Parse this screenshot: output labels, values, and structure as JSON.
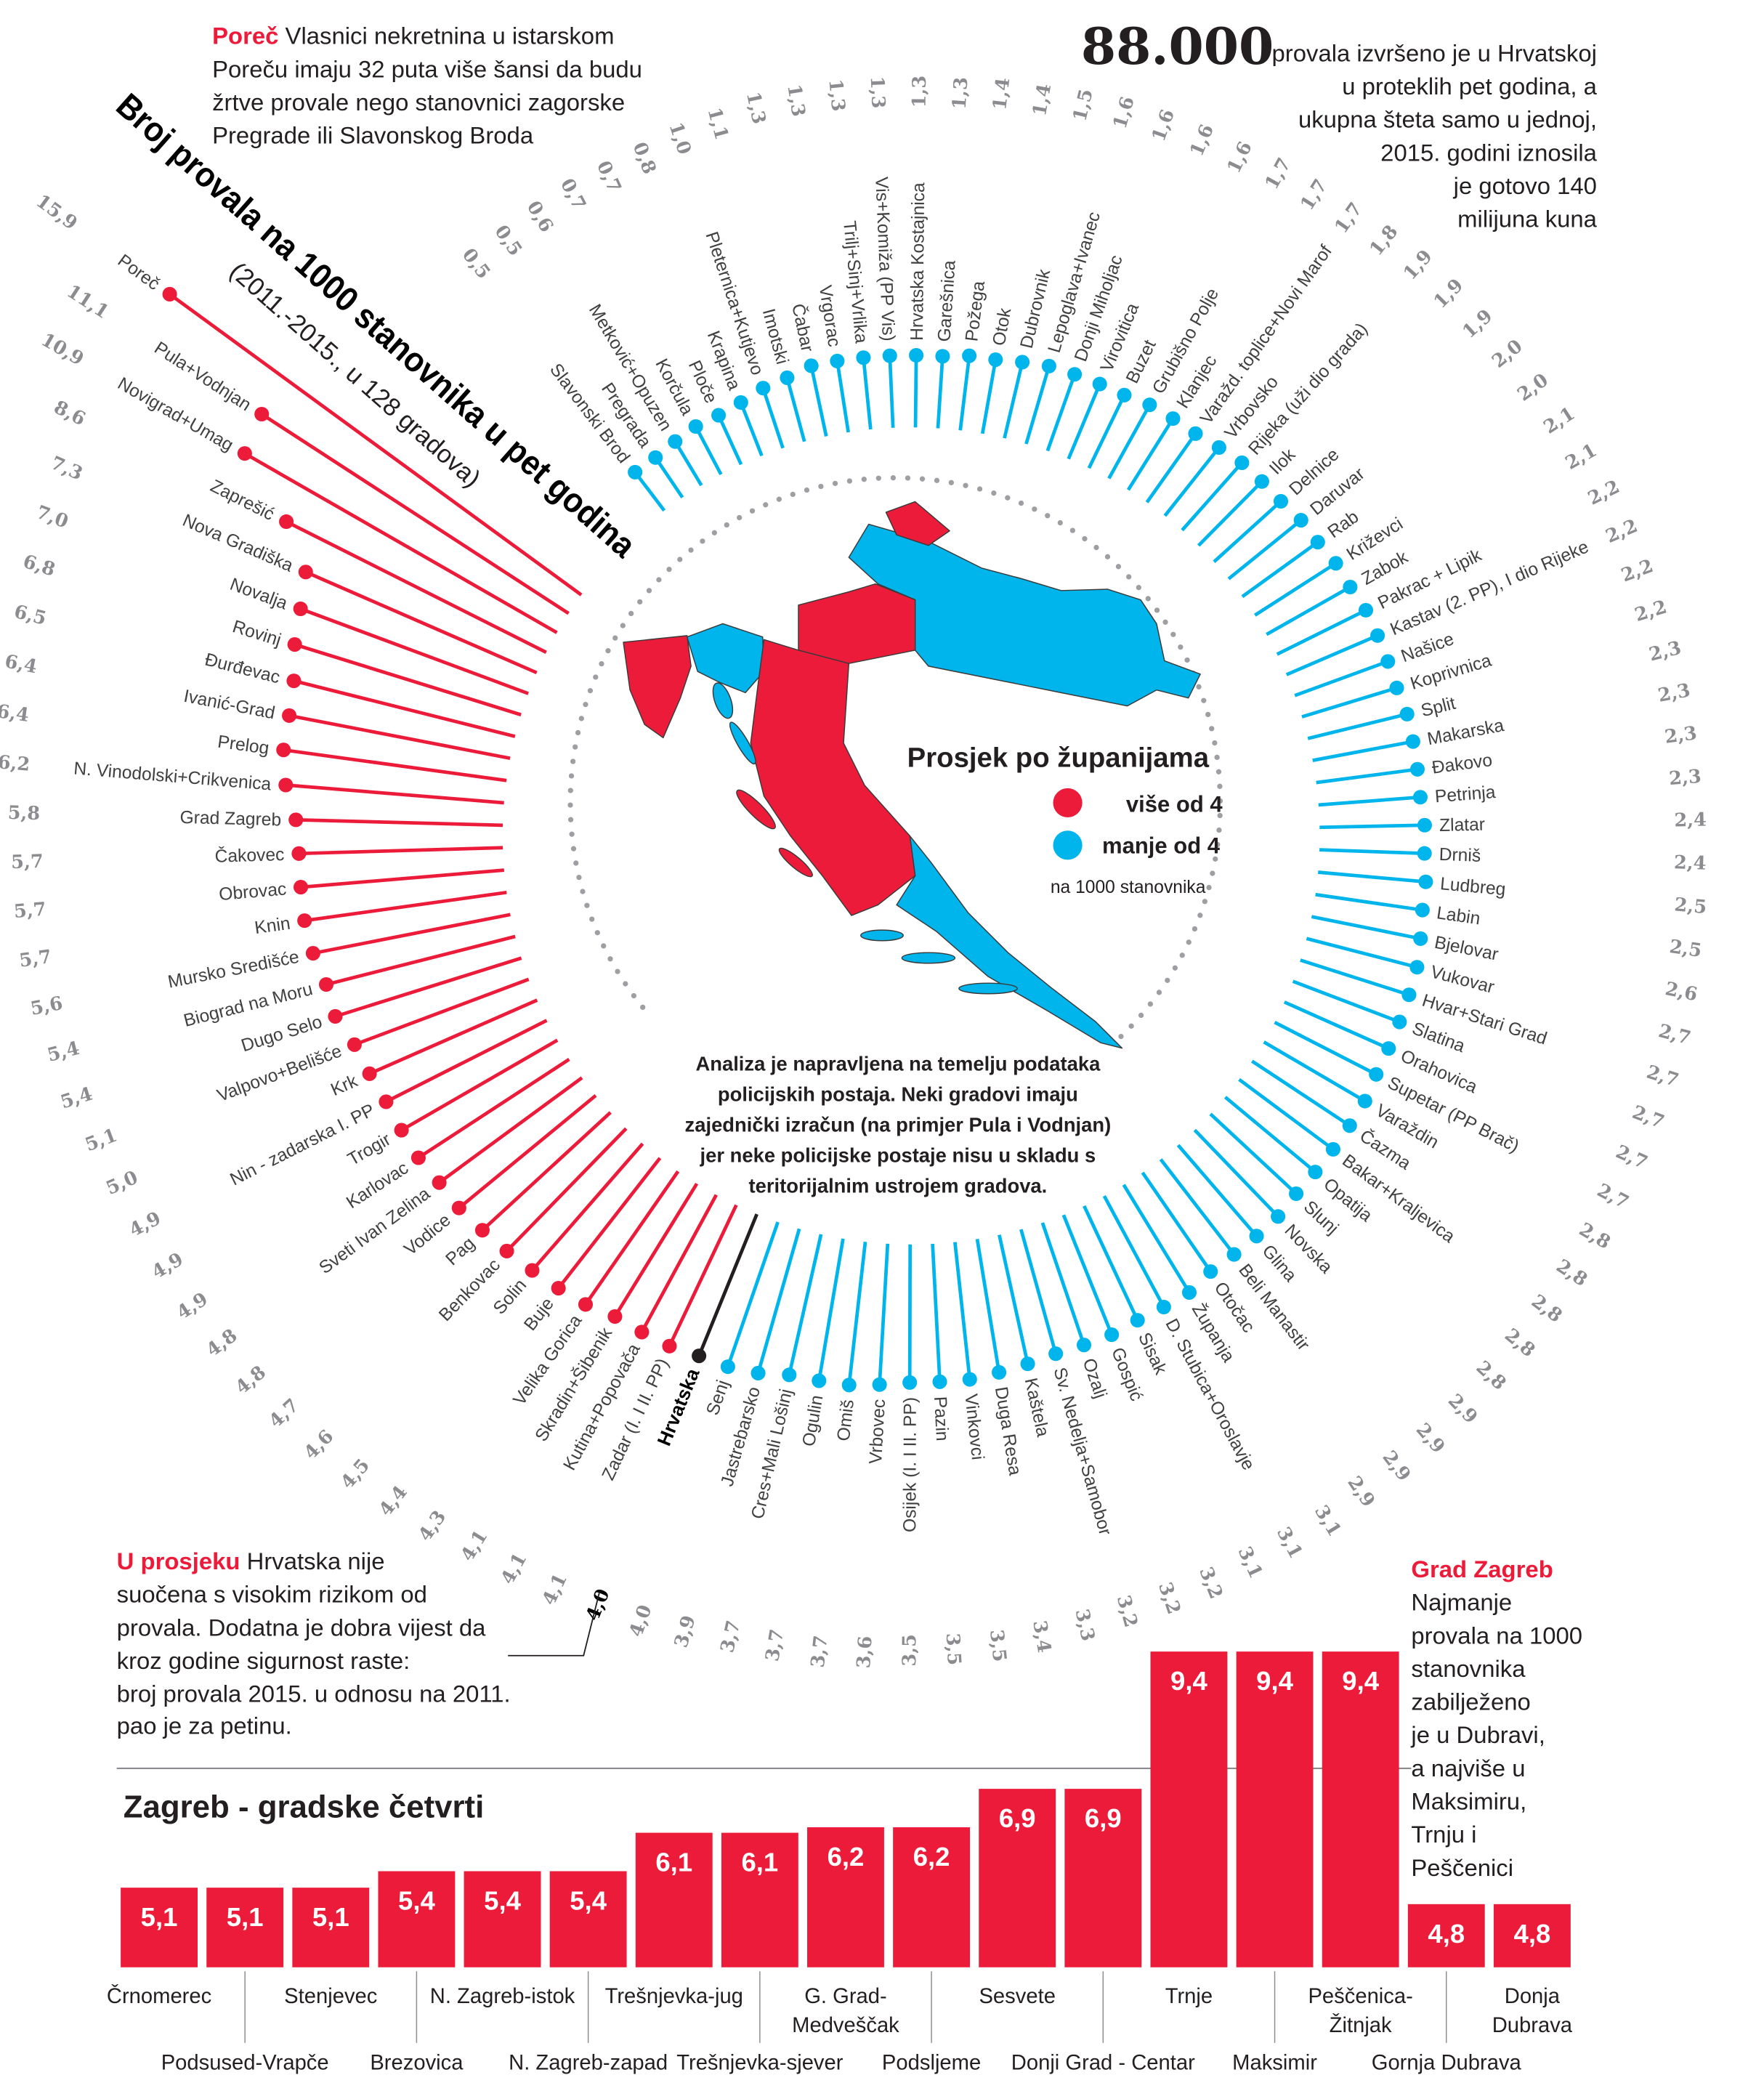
{
  "colors": {
    "above": "#ed1b3a",
    "below": "#00b5ec",
    "average": "#231f20",
    "value_text": "#8c8c90"
  },
  "intro": {
    "highlight": "Poreč",
    "lines": [
      " Vlasnici nekretnina u istarskom",
      "Poreču imaju 32 puta više šansi da budu",
      "žrtve provale nego stanovnici zagorske",
      "Pregrade ili Slavonskog Broda"
    ]
  },
  "headline": {
    "number": "88.000",
    "lines": [
      "provala izvršeno je u Hrvatskoj",
      "u proteklih pet godina, a",
      "ukupna šteta samo u jednoj,",
      "2015. godini iznosila",
      "je gotovo 140",
      "milijuna kuna"
    ]
  },
  "legend": {
    "title": "Prosjek po županijama",
    "above": "više od 4",
    "below": "manje od 4",
    "unit": "na 1000 stanovnika"
  },
  "note": [
    "Analiza je napravljena na temelju podataka",
    "policijskih postaja. Neki gradovi imaju",
    "zajednički izračun (na primjer Pula i Vodnjan)",
    "jer neke policijske postaje nisu u skladu s",
    "teritorijalnim ustrojem gradova."
  ],
  "average_note": {
    "highlight": "U prosjeku",
    "lines": [
      " Hrvatska nije",
      "suočena s visokim rizikom od",
      "provala. Dodatna je dobra vijest da",
      "kroz godine sigurnost raste:",
      "broj provala 2015. u odnosu na 2011.",
      "pao je za petinu."
    ]
  },
  "zagreb_note": {
    "highlight": "Grad Zagreb",
    "lines": [
      "Najmanje",
      "provala na 1000",
      "stanovnika",
      "zabilježeno",
      "je u Dubravi,",
      "a najviše u",
      "Maksimiru,",
      "Trnju i",
      "Peščenici"
    ]
  },
  "chart_data": [
    {
      "type": "bar",
      "layout": "radial-lollipop",
      "title": "Broj provala na 1000 stanovnika u pet godina",
      "subtitle": "(2011.-2015., u 128 gradova)",
      "average_label": "Hrvatska",
      "average_value": 4.0,
      "categories": [
        "Slavonski Brod",
        "Pregrada",
        "Metković+Opuzen",
        "Korčula",
        "Ploče",
        "Krapina",
        "Pleternica+Kutjevo",
        "Imotski",
        "Čabar",
        "Vrgorac",
        "Trilj+Sinj+Vrlika",
        "Vis+Komiža (PP Vis)",
        "Hrvatska Kostajnica",
        "Garešnica",
        "Požega",
        "Otok",
        "Dubrovnik",
        "Lepoglava+Ivanec",
        "Donji Miholjac",
        "Virovitica",
        "Buzet",
        "Grubišno Polje",
        "Klanjec",
        "Varažd. toplice+Novi Marof",
        "Vrbovsko",
        "Rijeka (uži dio grada)",
        "Ilok",
        "Delnice",
        "Daruvar",
        "Rab",
        "Križevci",
        "Zabok",
        "Pakrac + Lipik",
        "Kastav (2. PP), I dio Rijeke",
        "Našice",
        "Koprivnica",
        "Split",
        "Makarska",
        "Đakovo",
        "Petrinja",
        "Zlatar",
        "Drniš",
        "Ludbreg",
        "Labin",
        "Bjelovar",
        "Vukovar",
        "Hvar+Stari Grad",
        "Slatina",
        "Orahovica",
        "Supetar (PP Brač)",
        "Varaždin",
        "Čazma",
        "Bakar+Kraljevica",
        "Opatija",
        "Slunj",
        "Novska",
        "Glina",
        "Beli Manastir",
        "Otočac",
        "Županja",
        "D. Stubica+Oroslavje",
        "Sisak",
        "Gospić",
        "Ozalj",
        "Sv. Nedelja+Samobor",
        "Kaštela",
        "Duga Resa",
        "Vinkovci",
        "Pazin",
        "Osijek (I. I II. PP)",
        "Vrbovec",
        "Omiš",
        "Ogulin",
        "Cres+Mali Lošinj",
        "Jastrebarsko",
        "Senj",
        "Hrvatska",
        "Zadar (I. I II. PP)",
        "Kutina+Popovača",
        "Skradin+Šibenik",
        "Velika Gorica",
        "Buje",
        "Solin",
        "Benkovac",
        "Pag",
        "Vodice",
        "Sveti Ivan Zelina",
        "Karlovac",
        "Trogir",
        "Nin - zadarska I. PP",
        "Krk",
        "Valpovo+Belišće",
        "Dugo Selo",
        "Biograd na Moru",
        "Mursko Središće",
        "Knin",
        "Obrovac",
        "Čakovec",
        "Grad Zagreb",
        "N. Vinodolski+Crikvenica",
        "Prelog",
        "Ivanić-Grad",
        "Đurđevac",
        "Rovinj",
        "Novalja",
        "Nova Gradiška",
        "Zaprešić",
        "Novigrad+Umag",
        "Pula+Vodnjan",
        "Poreč"
      ],
      "values": [
        0.5,
        0.5,
        0.6,
        0.7,
        0.7,
        0.8,
        1.0,
        1.1,
        1.3,
        1.3,
        1.3,
        1.3,
        1.3,
        1.3,
        1.4,
        1.4,
        1.5,
        1.6,
        1.6,
        1.6,
        1.6,
        1.7,
        1.7,
        1.7,
        1.8,
        1.9,
        1.9,
        1.9,
        2.0,
        2.0,
        2.1,
        2.1,
        2.2,
        2.2,
        2.2,
        2.2,
        2.3,
        2.3,
        2.3,
        2.3,
        2.4,
        2.4,
        2.5,
        2.5,
        2.6,
        2.7,
        2.7,
        2.7,
        2.7,
        2.7,
        2.8,
        2.8,
        2.8,
        2.8,
        2.8,
        2.9,
        2.9,
        2.9,
        2.9,
        3.1,
        3.1,
        3.1,
        3.2,
        3.2,
        3.2,
        3.3,
        3.4,
        3.5,
        3.5,
        3.5,
        3.6,
        3.7,
        3.7,
        3.7,
        3.9,
        4.0,
        4.0,
        4.1,
        4.1,
        4.1,
        4.3,
        4.4,
        4.5,
        4.6,
        4.7,
        4.8,
        4.8,
        4.9,
        4.9,
        4.9,
        5.0,
        5.1,
        5.4,
        5.4,
        5.6,
        5.7,
        5.7,
        5.7,
        5.8,
        6.2,
        6.4,
        6.4,
        6.5,
        6.8,
        7.0,
        7.3,
        8.6,
        10.9,
        11.1,
        15.9
      ],
      "unit": "provala na 1000 stanovnika"
    },
    {
      "type": "bar",
      "title": "Zagreb - gradske četvrti",
      "categories": [
        [
          "Črnomerec"
        ],
        [
          "Podsused-Vrapče"
        ],
        [
          "Stenjevec"
        ],
        [
          "Brezovica"
        ],
        [
          "N. Zagreb-istok"
        ],
        [
          "N. Zagreb-zapad"
        ],
        [
          "Trešnjevka-jug"
        ],
        [
          "Trešnjevka-sjever"
        ],
        [
          "G. Grad-",
          "Medveščak"
        ],
        [
          "Podsljeme"
        ],
        [
          "Sesvete"
        ],
        [
          "Donji Grad - Centar"
        ],
        [
          "Trnje"
        ],
        [
          "Maksimir"
        ],
        [
          "Peščenica-",
          "Žitnjak"
        ],
        [
          "Gornja Dubrava"
        ],
        [
          "Donja",
          "Dubrava"
        ]
      ],
      "values": [
        5.1,
        5.1,
        5.1,
        5.4,
        5.4,
        5.4,
        6.1,
        6.1,
        6.2,
        6.2,
        6.9,
        6.9,
        9.4,
        9.4,
        9.4,
        4.8,
        4.8
      ],
      "xlabel": "",
      "ylabel": ""
    }
  ]
}
